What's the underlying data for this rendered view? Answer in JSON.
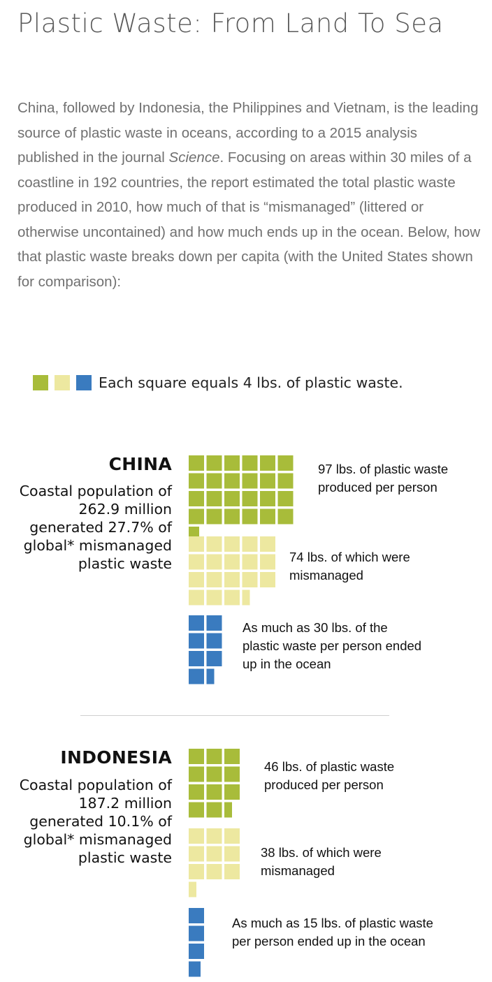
{
  "title": "Plastic Waste: From Land To Sea",
  "intro": {
    "before_italic": "China, followed by Indonesia, the Philippines and Vietnam, is the leading source of plastic waste in oceans, according to a 2015 analysis published in the journal ",
    "italic": "Science",
    "after_italic": ". Focusing on areas within 30 miles of a coastline in 192 countries, the report estimated the total plastic waste produced in 2010, how much of that is “mismanaged” (littered or otherwise uncontained) and how much ends up in the ocean. Below, how that plastic waste breaks down per capita (with the United States shown for comparison):"
  },
  "legend": {
    "label": "Each square equals 4 lbs. of plastic waste.",
    "icons": [
      "green-square-icon",
      "yellow-square-icon",
      "blue-square-icon"
    ]
  },
  "colors": {
    "produced": "#a8bc3a",
    "mismanaged": "#ede8a0",
    "ocean": "#3a7bbf"
  },
  "chart_data": [
    {
      "type": "waffle",
      "unit": "lbs. per square",
      "unit_value": 4,
      "country": "CHINA",
      "description": "Coastal population of 262.9 million generated 27.7% of global* mismanaged plastic waste",
      "series": [
        {
          "key": "produced",
          "values": [
            97
          ],
          "annotation": "97 lbs. of plastic waste produced per person"
        },
        {
          "key": "mismanaged",
          "values": [
            74
          ],
          "annotation": "74 lbs. of which were mismanaged"
        },
        {
          "key": "ocean",
          "values": [
            30
          ],
          "annotation": "As much as 30 lbs. of the plastic waste per person ended up in the ocean"
        }
      ]
    },
    {
      "type": "waffle",
      "unit": "lbs. per square",
      "unit_value": 4,
      "country": "INDONESIA",
      "description": "Coastal population of 187.2 million generated 10.1% of global* mismanaged plastic waste",
      "series": [
        {
          "key": "produced",
          "values": [
            46
          ],
          "annotation": "46 lbs. of plastic waste produced per person"
        },
        {
          "key": "mismanaged",
          "values": [
            38
          ],
          "annotation": "38 lbs. of which were mismanaged"
        },
        {
          "key": "ocean",
          "values": [
            15
          ],
          "annotation": "As much as 15 lbs. of plastic waste per person ended up in the ocean"
        }
      ]
    }
  ]
}
